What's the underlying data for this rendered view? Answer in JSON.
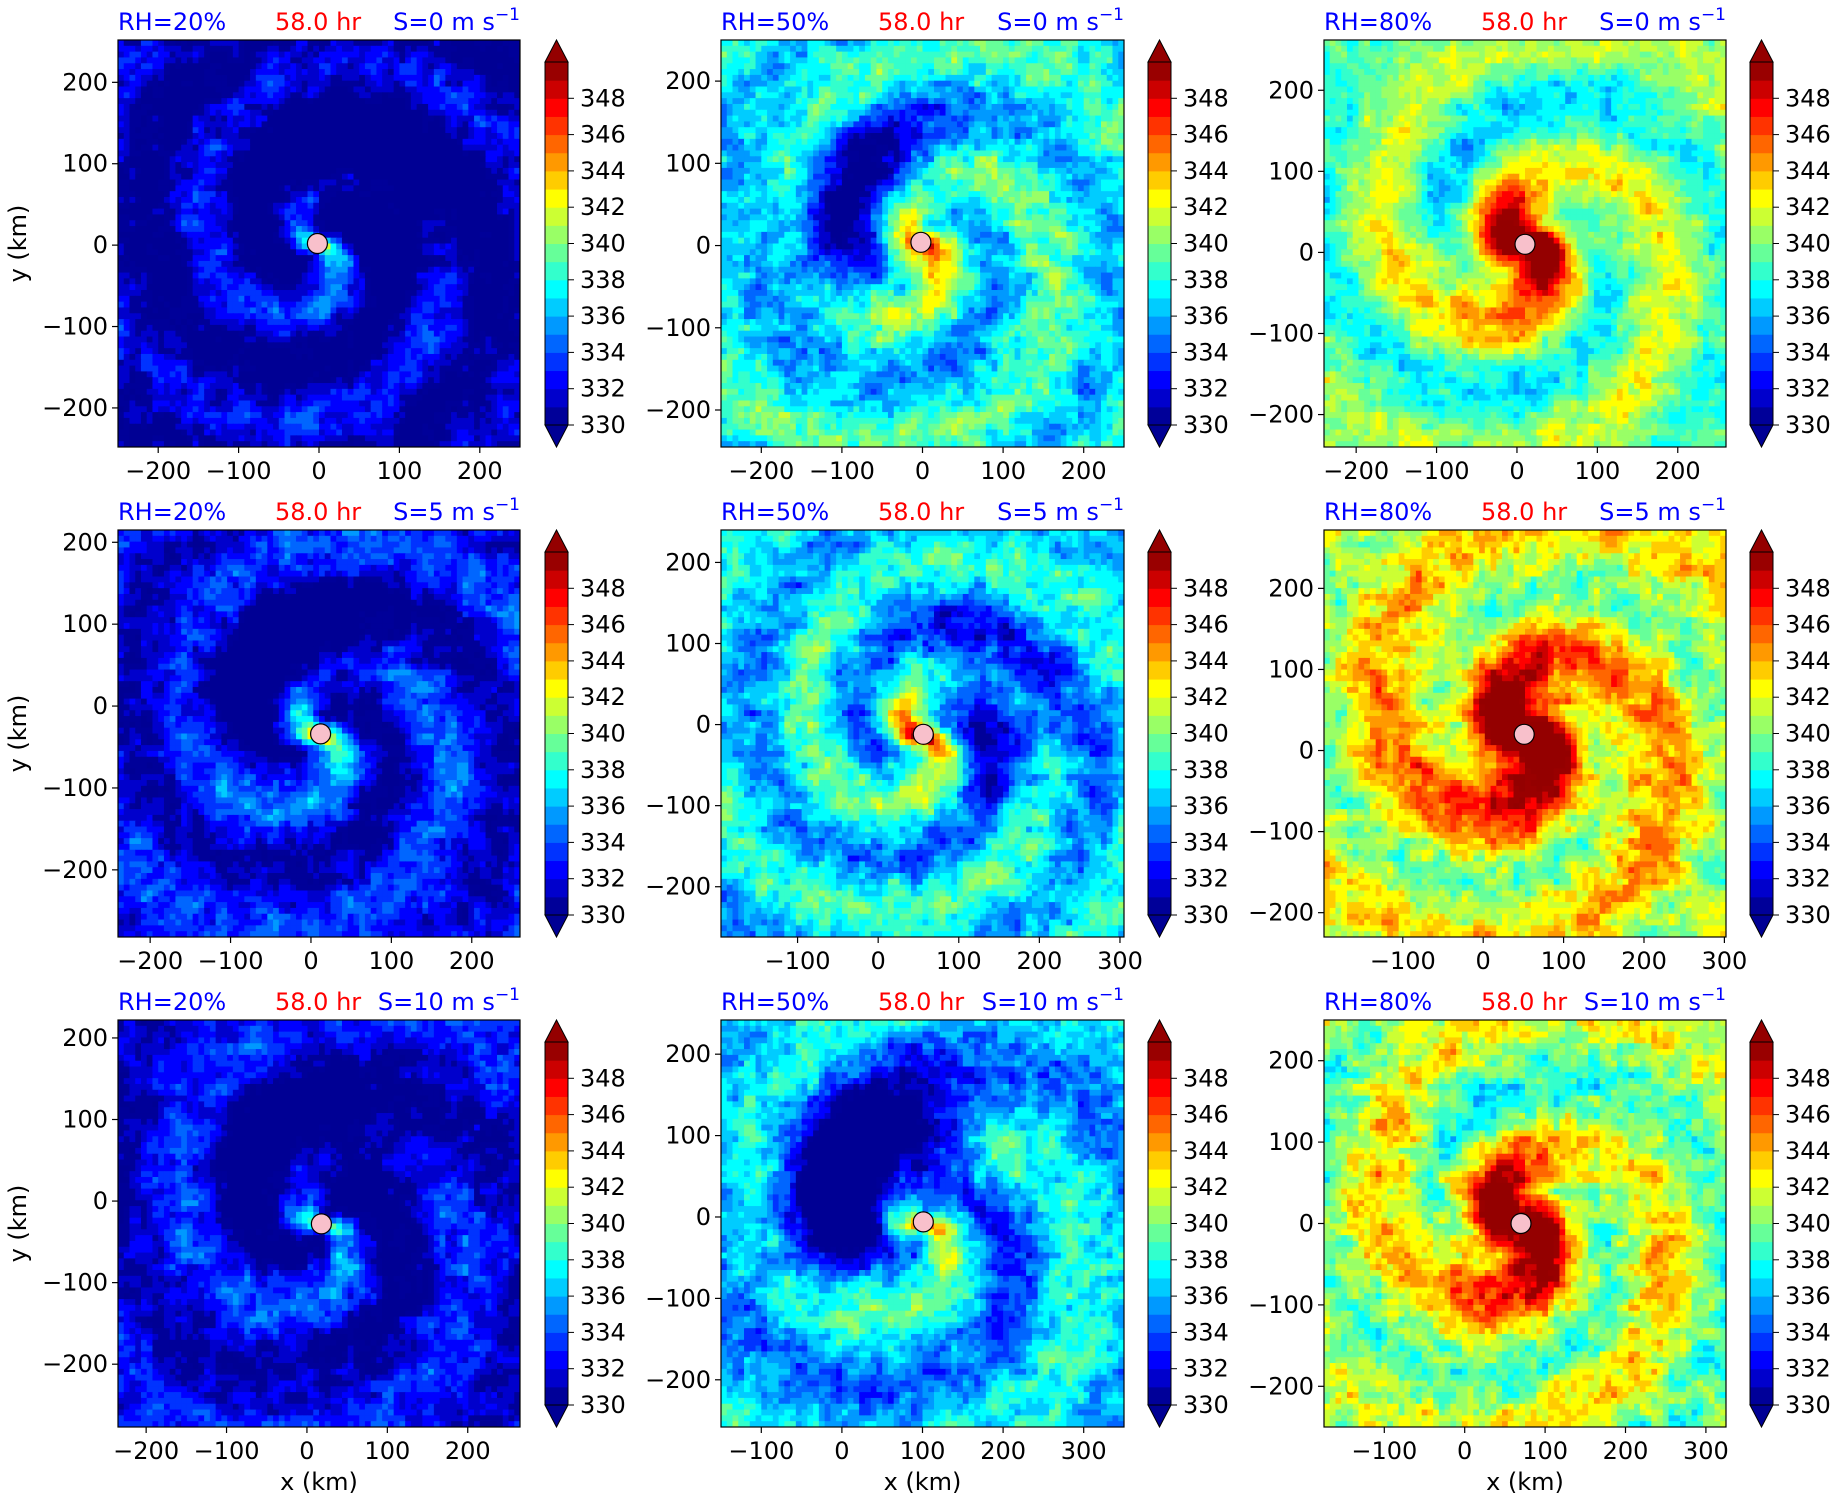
{
  "panel_grid": {
    "rows": 3,
    "cols": 3
  },
  "colorbar": {
    "min": 330,
    "max": 350,
    "step": 1,
    "extend": "both",
    "tick_values": [
      330,
      332,
      334,
      336,
      338,
      340,
      342,
      344,
      346,
      348
    ],
    "tick_labels": [
      "330",
      "332",
      "334",
      "336",
      "338",
      "340",
      "342",
      "344",
      "346",
      "348"
    ],
    "colormap": "jet"
  },
  "chart_data": [
    {
      "type": "heatmap",
      "rh": "RH=20%",
      "time": "58.0 hr",
      "shear": "S=0 m s",
      "shear_exp": "−1",
      "center": [
        0,
        0
      ],
      "xticks": [
        -200,
        -100,
        0,
        100,
        200
      ],
      "xtick_labels": [
        "−200",
        "−100",
        "0",
        "100",
        "200"
      ],
      "yticks": [
        -200,
        -100,
        0,
        100,
        200
      ],
      "ytick_labels": [
        "−200",
        "−100",
        "0",
        "100",
        "200"
      ],
      "xlim": [
        -250,
        250
      ],
      "ylim": [
        -248,
        252
      ],
      "xlabel": "",
      "ylabel": "y (km)",
      "storm_marker": [
        -2,
        2
      ]
    },
    {
      "type": "heatmap",
      "rh": "RH=50%",
      "time": "58.0 hr",
      "shear": "S=0 m s",
      "shear_exp": "−1",
      "center": [
        0,
        0
      ],
      "xticks": [
        -200,
        -100,
        0,
        100,
        200
      ],
      "xtick_labels": [
        "−200",
        "−100",
        "0",
        "100",
        "200"
      ],
      "yticks": [
        -200,
        -100,
        0,
        100,
        200
      ],
      "ytick_labels": [
        "−200",
        "−100",
        "0",
        "100",
        "200"
      ],
      "xlim": [
        -250,
        250
      ],
      "ylim": [
        -245,
        250
      ],
      "xlabel": "",
      "ylabel": "",
      "storm_marker": [
        -2,
        4
      ]
    },
    {
      "type": "heatmap",
      "rh": "RH=80%",
      "time": "58.0 hr",
      "shear": "S=0 m s",
      "shear_exp": "−1",
      "center": [
        10,
        10
      ],
      "xticks": [
        -200,
        -100,
        0,
        100,
        200
      ],
      "xtick_labels": [
        "−200",
        "−100",
        "0",
        "100",
        "200"
      ],
      "yticks": [
        -200,
        -100,
        0,
        100,
        200
      ],
      "ytick_labels": [
        "−200",
        "−100",
        "0",
        "100",
        "200"
      ],
      "xlim": [
        -240,
        260
      ],
      "ylim": [
        -240,
        262
      ],
      "xlabel": "",
      "ylabel": "",
      "storm_marker": [
        10,
        10
      ]
    },
    {
      "type": "heatmap",
      "rh": "RH=20%",
      "time": "58.0 hr",
      "shear": "S=5 m s",
      "shear_exp": "−1",
      "center": [
        10,
        -35
      ],
      "xticks": [
        -200,
        -100,
        0,
        100,
        200
      ],
      "xtick_labels": [
        "−200",
        "−100",
        "0",
        "100",
        "200"
      ],
      "yticks": [
        -200,
        -100,
        0,
        100,
        200
      ],
      "ytick_labels": [
        "−200",
        "−100",
        "0",
        "100",
        "200"
      ],
      "xlim": [
        -240,
        260
      ],
      "ylim": [
        -282,
        215
      ],
      "xlabel": "",
      "ylabel": "y (km)",
      "storm_marker": [
        12,
        -34
      ]
    },
    {
      "type": "heatmap",
      "rh": "RH=50%",
      "time": "58.0 hr",
      "shear": "S=5 m s",
      "shear_exp": "−1",
      "center": [
        55,
        -15
      ],
      "xticks": [
        -100,
        0,
        100,
        200,
        300
      ],
      "xtick_labels": [
        "−100",
        "0",
        "100",
        "200",
        "300"
      ],
      "yticks": [
        -200,
        -100,
        0,
        100,
        200
      ],
      "ytick_labels": [
        "−200",
        "−100",
        "0",
        "100",
        "200"
      ],
      "xlim": [
        -195,
        305
      ],
      "ylim": [
        -262,
        240
      ],
      "xlabel": "",
      "ylabel": "",
      "storm_marker": [
        56,
        -12
      ]
    },
    {
      "type": "heatmap",
      "rh": "RH=80%",
      "time": "58.0 hr",
      "shear": "S=5 m s",
      "shear_exp": "−1",
      "center": [
        50,
        20
      ],
      "xticks": [
        -100,
        0,
        100,
        200,
        300
      ],
      "xtick_labels": [
        "−100",
        "0",
        "100",
        "200",
        "300"
      ],
      "yticks": [
        -200,
        -100,
        0,
        100,
        200
      ],
      "ytick_labels": [
        "−200",
        "−100",
        "0",
        "100",
        "200"
      ],
      "xlim": [
        -198,
        302
      ],
      "ylim": [
        -230,
        272
      ],
      "xlabel": "",
      "ylabel": "",
      "storm_marker": [
        51,
        20
      ]
    },
    {
      "type": "heatmap",
      "rh": "RH=20%",
      "time": "58.0 hr",
      "shear": "S=10 m s",
      "shear_exp": "−1",
      "center": [
        20,
        -30
      ],
      "xticks": [
        -200,
        -100,
        0,
        100,
        200
      ],
      "xtick_labels": [
        "−200",
        "−100",
        "0",
        "100",
        "200"
      ],
      "yticks": [
        -200,
        -100,
        0,
        100,
        200
      ],
      "ytick_labels": [
        "−200",
        "−100",
        "0",
        "100",
        "200"
      ],
      "xlim": [
        -235,
        265
      ],
      "ylim": [
        -277,
        222
      ],
      "xlabel": "x (km)",
      "ylabel": "y (km)",
      "storm_marker": [
        18,
        -28
      ]
    },
    {
      "type": "heatmap",
      "rh": "RH=50%",
      "time": "58.0 hr",
      "shear": "S=10 m s",
      "shear_exp": "−1",
      "center": [
        100,
        -10
      ],
      "xticks": [
        -100,
        0,
        100,
        200,
        300
      ],
      "xtick_labels": [
        "−100",
        "0",
        "100",
        "200",
        "300"
      ],
      "yticks": [
        -200,
        -100,
        0,
        100,
        200
      ],
      "ytick_labels": [
        "−200",
        "−100",
        "0",
        "100",
        "200"
      ],
      "xlim": [
        -150,
        350
      ],
      "ylim": [
        -258,
        242
      ],
      "xlabel": "x (km)",
      "ylabel": "",
      "storm_marker": [
        101,
        -6
      ]
    },
    {
      "type": "heatmap",
      "rh": "RH=80%",
      "time": "58.0 hr",
      "shear": "S=10 m s",
      "shear_exp": "−1",
      "center": [
        70,
        0
      ],
      "xticks": [
        -100,
        0,
        100,
        200,
        300
      ],
      "xtick_labels": [
        "−100",
        "0",
        "100",
        "200",
        "300"
      ],
      "yticks": [
        -200,
        -100,
        0,
        100,
        200
      ],
      "ytick_labels": [
        "−200",
        "−100",
        "0",
        "100",
        "200"
      ],
      "xlim": [
        -175,
        325
      ],
      "ylim": [
        -250,
        250
      ],
      "xlabel": "x (km)",
      "ylabel": "",
      "storm_marker": [
        70,
        0
      ]
    }
  ],
  "panel_fields": [
    {
      "base": 0.05,
      "arm": 0.2,
      "tight": 0.55,
      "noise": 0.12,
      "eye": 0.55,
      "eyeR": 18,
      "dry": 0.22,
      "dryDir": 0.9
    },
    {
      "base": 0.38,
      "arm": 0.2,
      "tight": 0.5,
      "noise": 0.14,
      "eye": 0.75,
      "eyeR": 24,
      "dry": 0.35,
      "dryDir": 2.5
    },
    {
      "base": 0.48,
      "arm": 0.25,
      "tight": 0.45,
      "noise": 0.12,
      "eye": 1.05,
      "eyeR": 45,
      "dry": 0.1,
      "dryDir": 1.5
    },
    {
      "base": 0.12,
      "arm": 0.2,
      "tight": 0.5,
      "noise": 0.12,
      "eye": 0.65,
      "eyeR": 20,
      "dry": 0.25,
      "dryDir": 2.0
    },
    {
      "base": 0.35,
      "arm": 0.22,
      "tight": 0.55,
      "noise": 0.14,
      "eye": 0.7,
      "eyeR": 25,
      "dry": 0.25,
      "dryDir": 0.5
    },
    {
      "base": 0.58,
      "arm": 0.25,
      "tight": 0.45,
      "noise": 0.15,
      "eye": 1.05,
      "eyeR": 55,
      "dry": 0.05,
      "dryDir": 1.5
    },
    {
      "base": 0.1,
      "arm": 0.18,
      "tight": 0.45,
      "noise": 0.12,
      "eye": 0.35,
      "eyeR": 15,
      "dry": 0.2,
      "dryDir": 1.5
    },
    {
      "base": 0.32,
      "arm": 0.22,
      "tight": 0.4,
      "noise": 0.14,
      "eye": 0.45,
      "eyeR": 22,
      "dry": 0.6,
      "dryDir": 2.3
    },
    {
      "base": 0.52,
      "arm": 0.25,
      "tight": 0.45,
      "noise": 0.16,
      "eye": 1.0,
      "eyeR": 60,
      "dry": 0.15,
      "dryDir": 1.0
    }
  ]
}
